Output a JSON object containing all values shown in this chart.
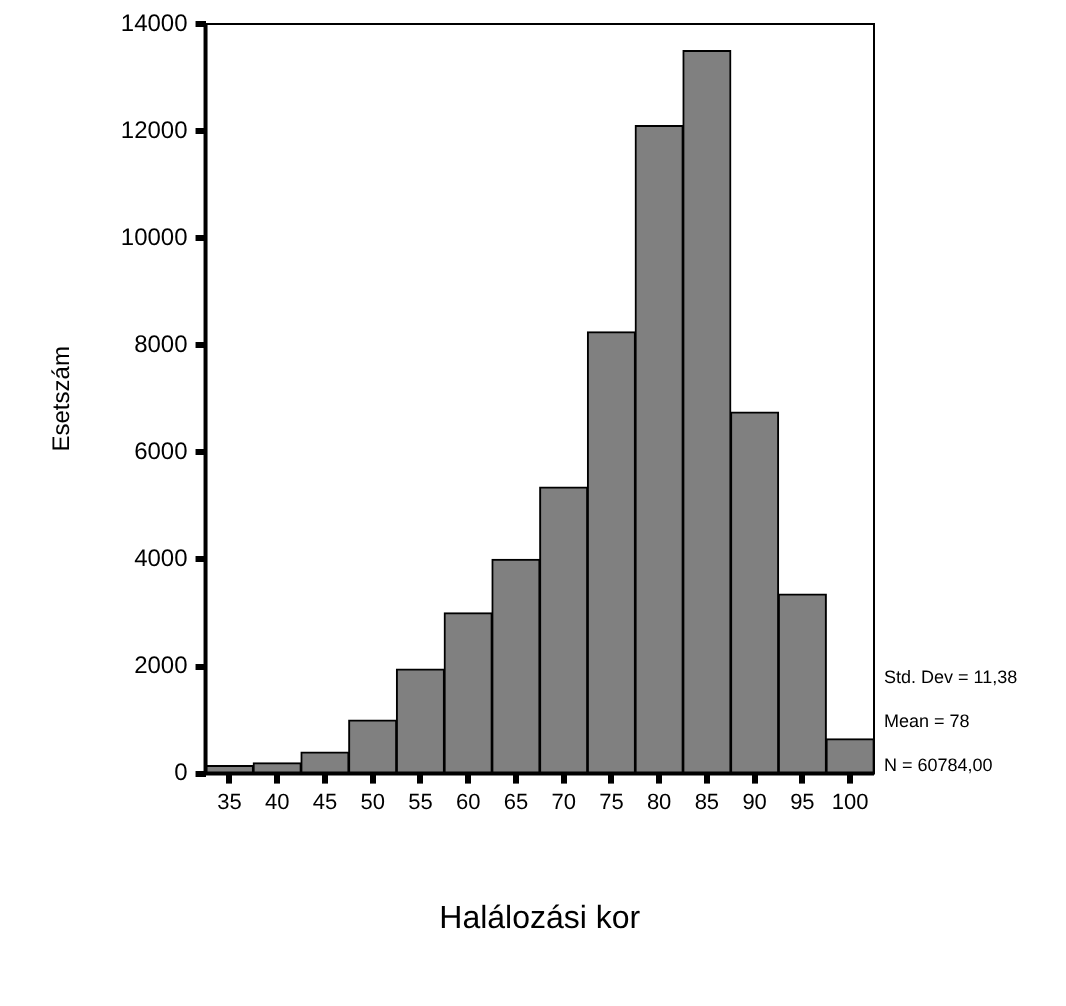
{
  "chart_data": {
    "type": "histogram",
    "xlabel": "Halálozási kor",
    "ylabel": "Esetszám",
    "bins": [
      32.5,
      37.5,
      42.5,
      47.5,
      52.5,
      57.5,
      62.5,
      67.5,
      72.5,
      77.5,
      82.5,
      87.5,
      92.5,
      97.5,
      102.5
    ],
    "values": [
      150,
      200,
      400,
      1000,
      1950,
      3000,
      4000,
      5350,
      8250,
      12100,
      13500,
      6750,
      3350,
      650
    ],
    "color": "#808080",
    "xlim": [
      32.5,
      102.5
    ],
    "xticks": [
      35,
      40,
      45,
      50,
      55,
      60,
      65,
      70,
      75,
      80,
      85,
      90,
      95,
      100
    ],
    "ylim": [
      0,
      14000
    ],
    "yticks": [
      0,
      2000,
      4000,
      6000,
      8000,
      10000,
      12000,
      14000
    ],
    "grid": false,
    "legend": false,
    "annotations": [
      "Std. Dev = 11,38",
      "Mean = 78",
      "N = 60784,00"
    ]
  }
}
